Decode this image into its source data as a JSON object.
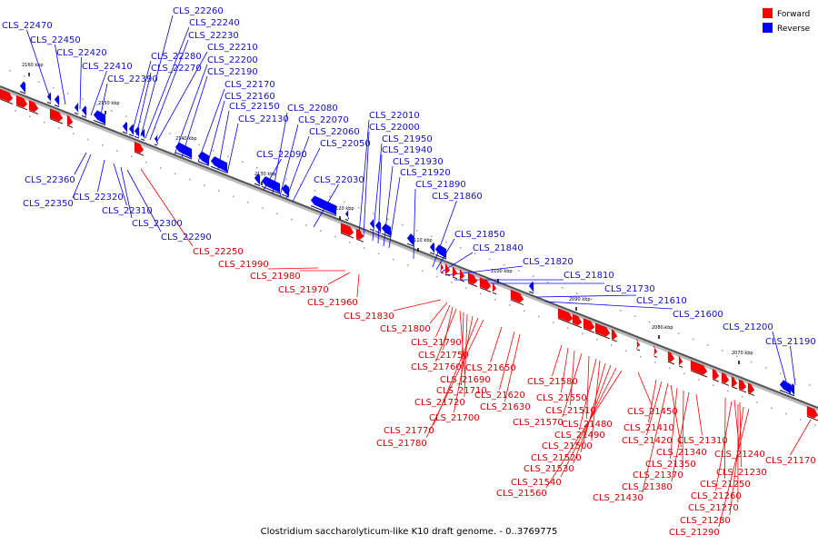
{
  "caption": "Clostridium saccharolyticum-like K10 draft genome. - 0..3769775",
  "legend": [
    {
      "label": "Forward",
      "color": "#ff0000"
    },
    {
      "label": "Reverse",
      "color": "#0000ff"
    }
  ],
  "axis": {
    "ticks": [
      "2160 kbp",
      "2150 kbp",
      "2140 kbp",
      "2130 kbp",
      "2120 kbp",
      "2110 kbp",
      "2100 kbp",
      "2090 kbp",
      "2080 kbp",
      "2070 kbp"
    ]
  },
  "reverse_labels": [
    "CLS_22470",
    "CLS_22450",
    "CLS_22420",
    "CLS_22410",
    "CLS_22390",
    "CLS_22260",
    "CLS_22240",
    "CLS_22230",
    "CLS_22210",
    "CLS_22280",
    "CLS_22270",
    "CLS_22200",
    "CLS_22190",
    "CLS_22170",
    "CLS_22160",
    "CLS_22150",
    "CLS_22130",
    "CLS_22080",
    "CLS_22070",
    "CLS_22060",
    "CLS_22050",
    "CLS_22090",
    "CLS_22010",
    "CLS_22000",
    "CLS_21950",
    "CLS_21940",
    "CLS_21930",
    "CLS_21920",
    "CLS_21890",
    "CLS_21860",
    "CLS_22030",
    "CLS_22360",
    "CLS_22350",
    "CLS_22320",
    "CLS_22310",
    "CLS_22300",
    "CLS_22290",
    "CLS_21850",
    "CLS_21840",
    "CLS_21820",
    "CLS_21810",
    "CLS_21730",
    "CLS_21610",
    "CLS_21600",
    "CLS_21200",
    "CLS_21190"
  ],
  "forward_labels": [
    "CLS_22250",
    "CLS_21990",
    "CLS_21980",
    "CLS_21970",
    "CLS_21960",
    "CLS_21830",
    "CLS_21800",
    "CLS_21790",
    "CLS_21750",
    "CLS_21760",
    "CLS_21690",
    "CLS_21710",
    "CLS_21720",
    "CLS_21700",
    "CLS_21770",
    "CLS_21780",
    "CLS_21650",
    "CLS_21620",
    "CLS_21630",
    "CLS_21580",
    "CLS_21550",
    "CLS_21510",
    "CLS_21570",
    "CLS_21480",
    "CLS_21490",
    "CLS_21500",
    "CLS_21520",
    "CLS_21530",
    "CLS_21540",
    "CLS_21560",
    "CLS_21450",
    "CLS_21410",
    "CLS_21420",
    "CLS_21340",
    "CLS_21350",
    "CLS_21370",
    "CLS_21380",
    "CLS_21430",
    "CLS_21310",
    "CLS_21240",
    "CLS_21230",
    "CLS_21250",
    "CLS_21260",
    "CLS_21270",
    "CLS_21280",
    "CLS_21290",
    "CLS_21170"
  ]
}
